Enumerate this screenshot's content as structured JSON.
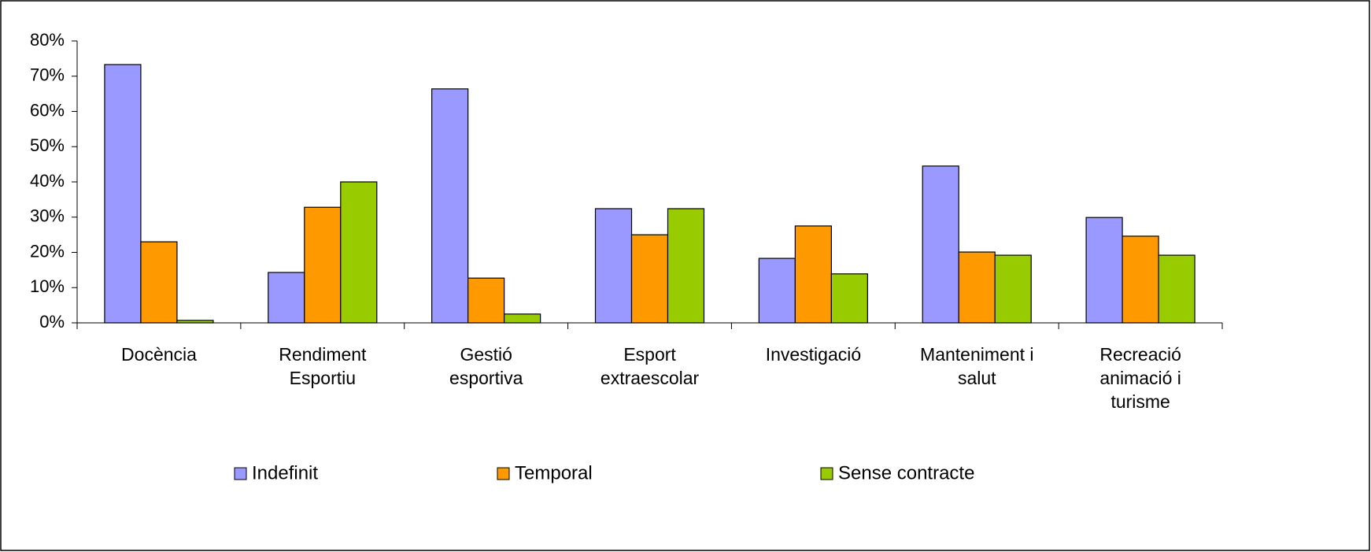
{
  "chart_data": {
    "type": "bar",
    "categories": [
      "Docència",
      "Rendiment\nEsportiu",
      "Gestió\nesportiva",
      "Esport\nextraescolar",
      "Investigació",
      "Manteniment i\nsalut",
      "Recreació\nanimació i\nturisme"
    ],
    "series": [
      {
        "name": "Indefinit",
        "color": "#9999ff",
        "values": [
          73.3,
          14.3,
          66.4,
          32.4,
          18.3,
          44.5,
          29.9
        ]
      },
      {
        "name": "Temporal",
        "color": "#ff9900",
        "values": [
          23.0,
          32.8,
          12.7,
          25.0,
          27.5,
          20.1,
          24.6
        ]
      },
      {
        "name": "Sense contracte",
        "color": "#99cc00",
        "values": [
          0.7,
          40.0,
          2.5,
          32.4,
          13.9,
          19.2,
          19.2
        ]
      }
    ],
    "ylim": [
      0,
      80
    ],
    "yticks": [
      {
        "value": 0,
        "label": "0%"
      },
      {
        "value": 10,
        "label": "10%"
      },
      {
        "value": 20,
        "label": "20%"
      },
      {
        "value": 30,
        "label": "30%"
      },
      {
        "value": 40,
        "label": "40%"
      },
      {
        "value": 50,
        "label": "50%"
      },
      {
        "value": 60,
        "label": "60%"
      },
      {
        "value": 70,
        "label": "70%"
      },
      {
        "value": 80,
        "label": "80%"
      }
    ],
    "legend": "bottom"
  }
}
